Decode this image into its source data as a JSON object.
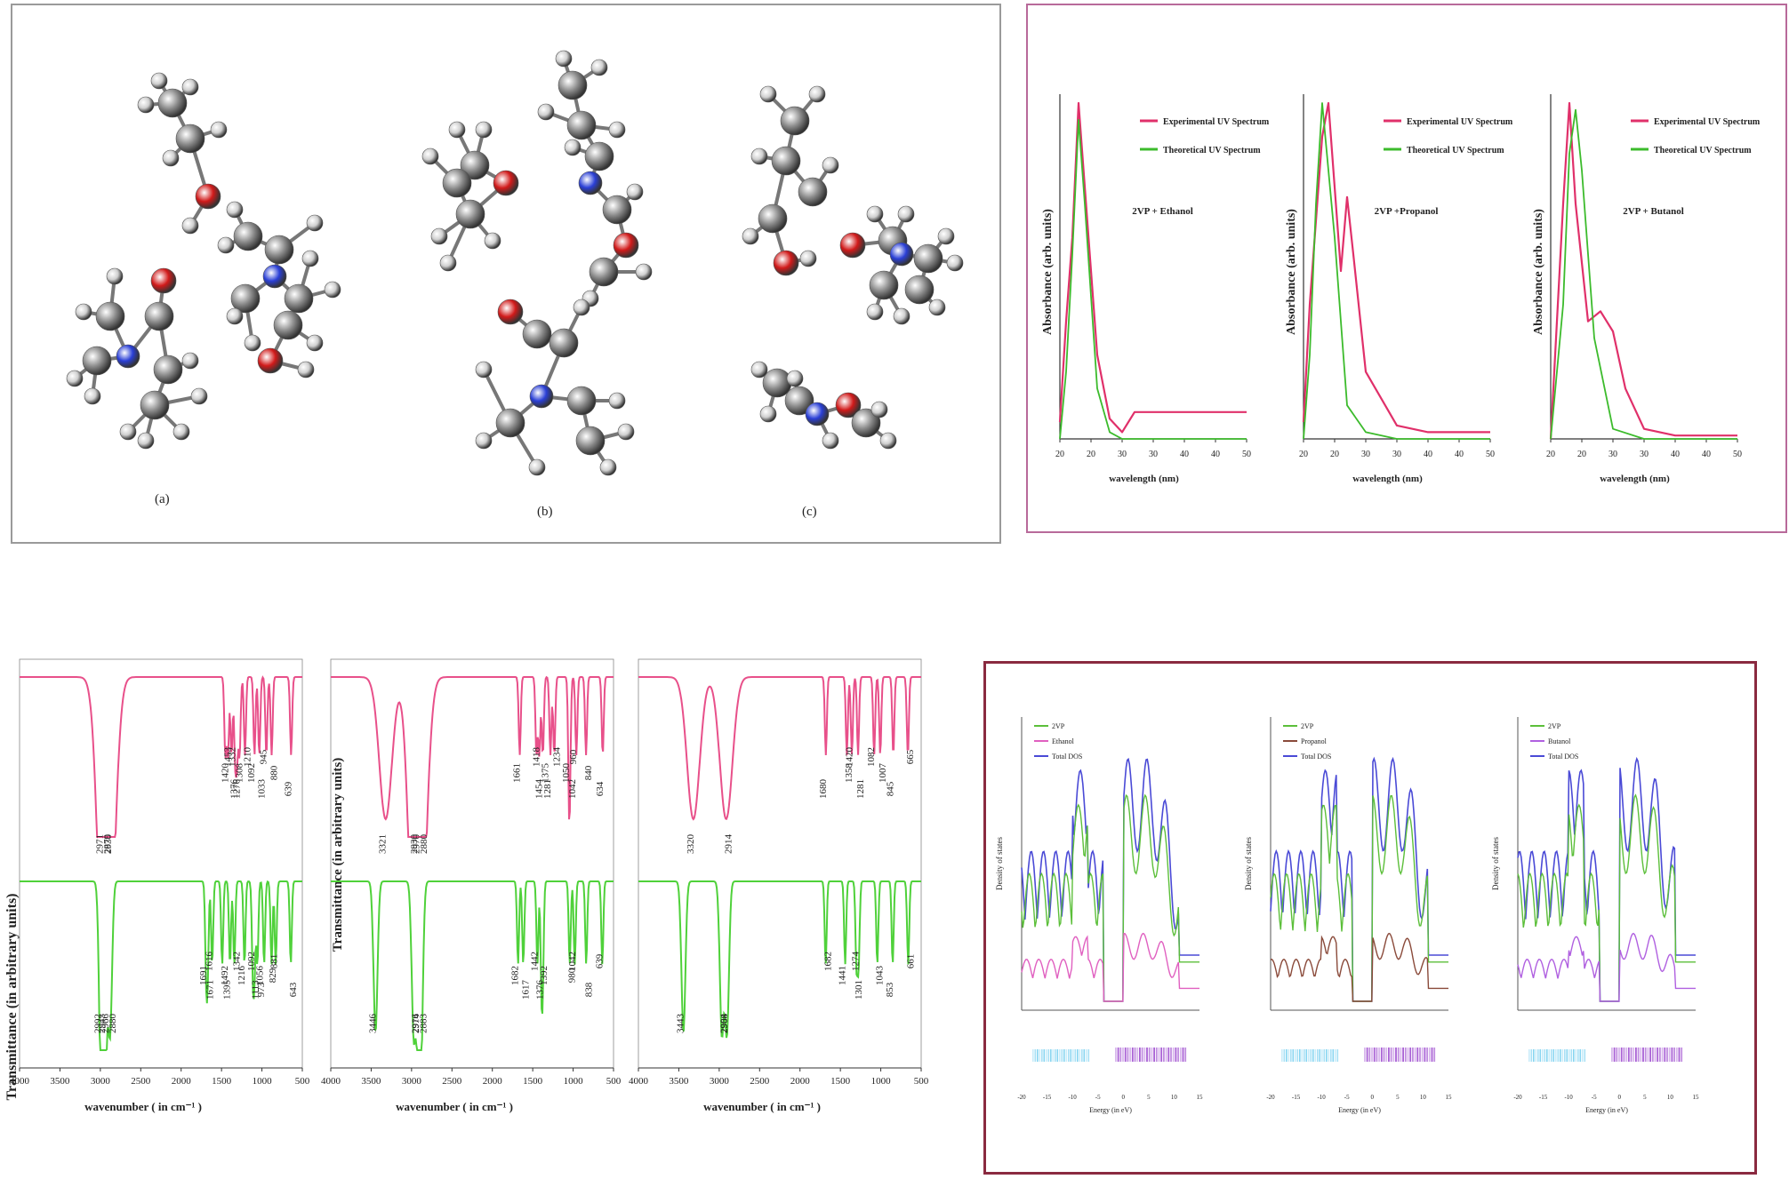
{
  "molecules": {
    "labels": [
      "(a)",
      "(b)",
      "(c)"
    ],
    "atom_colors": {
      "carbon": "#8a8a8a",
      "hydrogen": "#cfcfcf",
      "oxygen": "#d11a1a",
      "nitrogen": "#2a3fd6"
    }
  },
  "uv": {
    "border_color": "#b86a9a",
    "experimental_color": "#e0306a",
    "theoretical_color": "#3cbb2c",
    "ylabel": "Absorbance (arb. units)",
    "xlabel": "wavelength (nm)",
    "legend": [
      "Experimental UV Spectrum",
      "Theoretical UV Spectrum"
    ],
    "ticks": [
      "20",
      "20",
      "30",
      "30",
      "40",
      "40",
      "50"
    ],
    "subplots": [
      {
        "label": "2VP + Ethanol"
      },
      {
        "label": "2VP +Propanol"
      },
      {
        "label": "2VP + Butanol"
      }
    ]
  },
  "ir": {
    "ylabel": "Transmittance (in arbitrary units)",
    "xlabel": "wavenumber ( in cm⁻¹ )",
    "ticks": [
      "4000",
      "3500",
      "3000",
      "2500",
      "2000",
      "1500",
      "1000",
      "500"
    ],
    "exp_color": "#e8508a",
    "theo_color": "#4fd13a",
    "subplots": [
      {
        "exp_peaks": [
          "2971",
          "2930",
          "2879",
          "1453",
          "1420",
          "1376",
          "1332",
          "1308",
          "1276",
          "1210",
          "1092",
          "1033",
          "945",
          "880",
          "639"
        ],
        "theo_peaks": [
          "2992",
          "2966",
          "2943",
          "2880",
          "1691",
          "1671",
          "1616",
          "1492",
          "1395",
          "1342",
          "1216",
          "1113",
          "1092",
          "1056",
          "973",
          "881",
          "829",
          "643"
        ]
      },
      {
        "exp_peaks": [
          "3321",
          "2970",
          "2930",
          "2880",
          "1661",
          "1454",
          "1418",
          "1375",
          "1281",
          "1234",
          "1050",
          "1042",
          "960",
          "840",
          "634"
        ],
        "theo_peaks": [
          "3446",
          "2974",
          "2916",
          "2883",
          "1682",
          "1617",
          "1442",
          "1392",
          "1376",
          "1042",
          "980",
          "838",
          "639"
        ]
      },
      {
        "exp_peaks": [
          "3320",
          "2914",
          "1680",
          "1420",
          "1358",
          "1281",
          "1082",
          "1007",
          "845",
          "665"
        ],
        "theo_peaks": [
          "3443",
          "2968",
          "2904",
          "1682",
          "1441",
          "1301",
          "1274",
          "1043",
          "853",
          "661"
        ]
      }
    ]
  },
  "dos": {
    "border_color": "#8a2a40",
    "ylabel": "Density of states",
    "xlabel": "Energy (in eV)",
    "ticks": [
      "-20",
      "-15",
      "-10",
      "-5",
      "0",
      "5",
      "10",
      "15"
    ],
    "c2vp_color": "#5cbf3a",
    "total_color": "#4a4ad6",
    "subplots": [
      {
        "legend": [
          "2VP",
          "Ethanol",
          "Total DOS"
        ],
        "mol_color": "#e060c0"
      },
      {
        "legend": [
          "2VP",
          "Propanol",
          "Total DOS"
        ],
        "mol_color": "#8a4a3a"
      },
      {
        "legend": [
          "2VP",
          "Butanol",
          "Total DOS"
        ],
        "mol_color": "#b060e0"
      }
    ]
  },
  "chart_data": [
    {
      "type": "line",
      "title": "2VP + Ethanol",
      "xlabel": "wavelength (nm)",
      "ylabel": "Absorbance (arb. units)",
      "xlim": [
        20,
        50
      ],
      "series": [
        {
          "name": "Experimental UV Spectrum",
          "x": [
            20,
            21,
            22,
            23,
            24,
            26,
            28,
            30,
            32,
            40,
            50
          ],
          "y": [
            0.05,
            0.35,
            0.6,
            1.0,
            0.75,
            0.25,
            0.06,
            0.02,
            0.08,
            0.08,
            0.08
          ]
        },
        {
          "name": "Theoretical UV Spectrum",
          "x": [
            20,
            21,
            22,
            23,
            24,
            26,
            28,
            30,
            40,
            50
          ],
          "y": [
            0.0,
            0.2,
            0.55,
            0.95,
            0.7,
            0.15,
            0.02,
            0.0,
            0.0,
            0.0
          ]
        }
      ]
    },
    {
      "type": "line",
      "title": "2VP +Propanol",
      "xlabel": "wavelength (nm)",
      "ylabel": "Absorbance (arb. units)",
      "xlim": [
        20,
        50
      ],
      "series": [
        {
          "name": "Experimental UV Spectrum",
          "x": [
            20,
            21,
            23,
            24,
            26,
            27,
            28,
            30,
            35,
            40,
            50
          ],
          "y": [
            0.05,
            0.4,
            0.9,
            1.0,
            0.5,
            0.72,
            0.55,
            0.2,
            0.04,
            0.02,
            0.02
          ]
        },
        {
          "name": "Theoretical UV Spectrum",
          "x": [
            20,
            21,
            22,
            23,
            25,
            27,
            30,
            35,
            50
          ],
          "y": [
            0.0,
            0.25,
            0.7,
            1.0,
            0.6,
            0.1,
            0.02,
            0.0,
            0.0
          ]
        }
      ]
    },
    {
      "type": "line",
      "title": "2VP + Butanol",
      "xlabel": "wavelength (nm)",
      "ylabel": "Absorbance (arb. units)",
      "xlim": [
        20,
        50
      ],
      "series": [
        {
          "name": "Experimental UV Spectrum",
          "x": [
            20,
            22,
            23,
            24,
            26,
            28,
            30,
            32,
            35,
            40,
            50
          ],
          "y": [
            0.0,
            0.7,
            1.0,
            0.7,
            0.35,
            0.38,
            0.32,
            0.15,
            0.03,
            0.01,
            0.01
          ]
        },
        {
          "name": "Theoretical UV Spectrum",
          "x": [
            20,
            22,
            23,
            24,
            25,
            27,
            30,
            35,
            50
          ],
          "y": [
            0.0,
            0.4,
            0.85,
            0.98,
            0.8,
            0.3,
            0.03,
            0.0,
            0.0
          ]
        }
      ]
    }
  ]
}
